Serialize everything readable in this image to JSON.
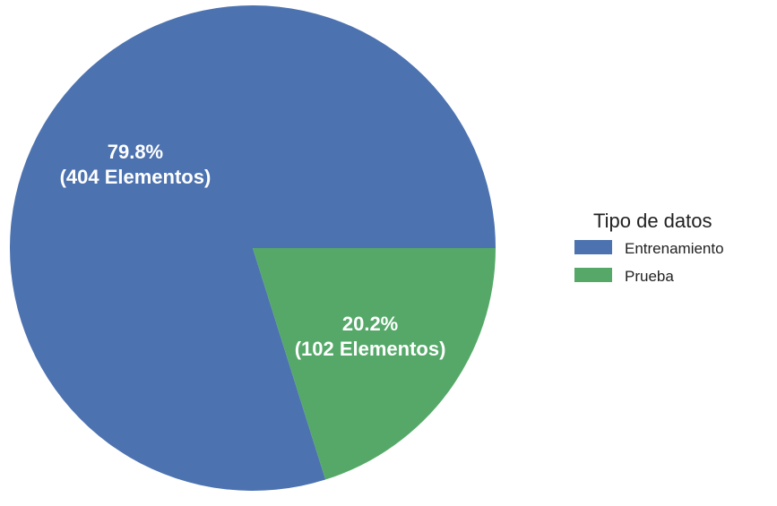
{
  "chart_data": {
    "type": "pie",
    "legend_title": "Tipo de datos",
    "legend_position": "right",
    "slices": [
      {
        "name": "Entrenamiento",
        "value": 404,
        "percent": 79.8,
        "color": "#4c72b0",
        "label_line1": "79.8%",
        "label_line2": "(404 Elementos)"
      },
      {
        "name": "Prueba",
        "value": 102,
        "percent": 20.2,
        "color": "#55a868",
        "label_line1": "20.2%",
        "label_line2": "(102 Elementos)"
      }
    ]
  }
}
